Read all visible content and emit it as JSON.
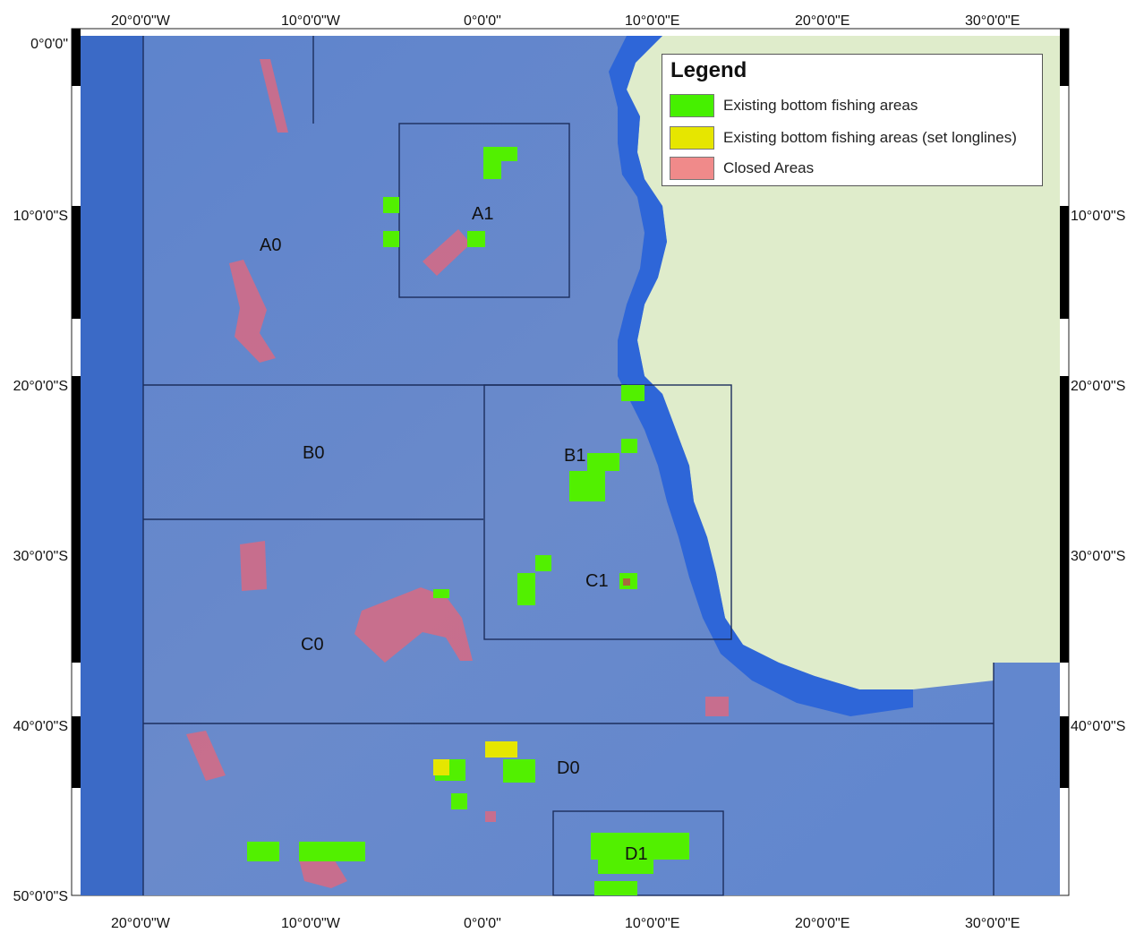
{
  "map": {
    "top_axis_labels": [
      "20°0'0\"W",
      "10°0'0\"W",
      "0°0'0\"",
      "10°0'0\"E",
      "20°0'0\"E",
      "30°0'0\"E"
    ],
    "bottom_axis_labels": [
      "20°0'0\"W",
      "10°0'0\"W",
      "0°0'0\"",
      "10°0'0\"E",
      "20°0'0\"E",
      "30°0'0\"E"
    ],
    "left_axis_labels": [
      "0°0'0\"",
      "10°0'0\"S",
      "20°0'0\"S",
      "30°0'0\"S",
      "40°0'0\"S",
      "50°0'0\"S"
    ],
    "right_axis_labels": [
      "10°0'0\"S",
      "20°0'0\"S",
      "30°0'0\"S",
      "40°0'0\"S"
    ],
    "area_labels": [
      "A0",
      "A1",
      "B0",
      "B1",
      "C0",
      "C1",
      "D0",
      "D1"
    ],
    "colors": {
      "ocean_deep": "#2f5fc0",
      "ocean_mid": "#6e8fd0",
      "shelf": "#4a86e0",
      "land": "#dfeccb",
      "bottom_fishing": "#52f000",
      "longline_fishing": "#e6e600",
      "closed": "#e06a78"
    }
  },
  "legend": {
    "title": "Legend",
    "items": [
      {
        "label": "Existing bottom fishing areas",
        "color": "#46f000"
      },
      {
        "label": "Existing bottom fishing areas (set longlines)",
        "color": "#e6e600"
      },
      {
        "label": "Closed Areas",
        "color": "#f08a8a"
      }
    ]
  }
}
